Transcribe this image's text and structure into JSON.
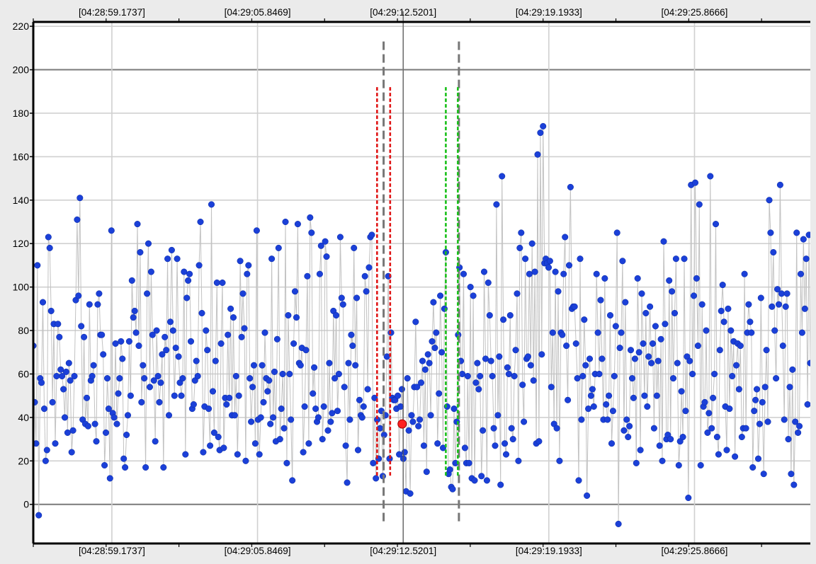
{
  "colors": {
    "background": "#ebebeb",
    "plot_background": "#ffffff",
    "axis": "#000000",
    "minor_grid": "#d0d0d0",
    "major_grid": "#7a7a7a",
    "point": "#1b40d8",
    "line": "#c2c2c2",
    "highlight": "#ff2020",
    "marker_gray": "#777777",
    "marker_red": "#e01515",
    "marker_green": "#18c018",
    "cursor": "#555555"
  },
  "chart_data": {
    "type": "scatter",
    "title": "",
    "xlabel": "",
    "ylabel": "",
    "x_tick_labels": [
      "[04:28:59.1737]",
      "[04:29:05.8469]",
      "[04:29:12.5201]",
      "[04:29:19.1933]",
      "[04:29:25.8666]"
    ],
    "y_ticks": [
      0,
      20,
      40,
      60,
      80,
      100,
      120,
      140,
      160,
      180,
      200,
      220
    ],
    "major_y_lines": [
      0,
      200
    ],
    "ylim": [
      -18,
      222
    ],
    "x_range_seconds_from_first_tick": [
      -3.6,
      32.0
    ],
    "tick_seconds_from_first_tick": [
      0,
      6.6732,
      13.3464,
      20.0196,
      26.6929
    ],
    "grid": true,
    "cursor_x": 13.3464,
    "markers": [
      {
        "kind": "gray-dashed",
        "x": 12.45,
        "y_range": [
          -9,
          213
        ]
      },
      {
        "kind": "gray-dashed",
        "x": 15.9,
        "y_range": [
          -9,
          213
        ]
      },
      {
        "kind": "red-dotted",
        "x": 12.15,
        "y_range": [
          13,
          192
        ]
      },
      {
        "kind": "red-dotted",
        "x": 12.75,
        "y_range": [
          13,
          192
        ]
      },
      {
        "kind": "green-dotted",
        "x": 15.3,
        "y_range": [
          13,
          192
        ]
      },
      {
        "kind": "green-dotted",
        "x": 15.85,
        "y_range": [
          13,
          192
        ]
      }
    ],
    "highlight_point": {
      "x": 13.3,
      "y": 37
    },
    "series": [
      {
        "values": [
          73,
          47,
          28,
          110,
          -5,
          58,
          56,
          93,
          44,
          20,
          25,
          123,
          118,
          89,
          47,
          83,
          28,
          59,
          83,
          77,
          62,
          59,
          53,
          40,
          61,
          33,
          65,
          57,
          24,
          34,
          59,
          94,
          131,
          96,
          141,
          82,
          39,
          77,
          37,
          49,
          36,
          92,
          57,
          59,
          64,
          37,
          29,
          92,
          97,
          78,
          78,
          69,
          18,
          33,
          58,
          44,
          12,
          126,
          42,
          40,
          74,
          37,
          51,
          58,
          75,
          67,
          21,
          17,
          32,
          41,
          75,
          50,
          103,
          86,
          89,
          79,
          129,
          73,
          116,
          47,
          64,
          58,
          17,
          97,
          120,
          54,
          107,
          78,
          57,
          29,
          80,
          59,
          47,
          56,
          69,
          17,
          77,
          71,
          113,
          41,
          84,
          117,
          80,
          50,
          72,
          113,
          68,
          56,
          50,
          58,
          107,
          23,
          95,
          103,
          106,
          75,
          44,
          46,
          57,
          66,
          59,
          110,
          130,
          88,
          24,
          45,
          80,
          71,
          44,
          27,
          138,
          52,
          33,
          66,
          102,
          31,
          25,
          74,
          102,
          26,
          49,
          46,
          78,
          49,
          90,
          41,
          86,
          41,
          59,
          23,
          50,
          112,
          77,
          97,
          81,
          20,
          106,
          110,
          58,
          38,
          54,
          64,
          28,
          126,
          39,
          23,
          40,
          64,
          47,
          79,
          58,
          52,
          57,
          37,
          113,
          40,
          61,
          29,
          76,
          118,
          30,
          44,
          60,
          35,
          130,
          19,
          87,
          60,
          39,
          11,
          74,
          98,
          86,
          129,
          65,
          64,
          72,
          24,
          45,
          71,
          105,
          28,
          132,
          125,
          51,
          63,
          44,
          38,
          40,
          106,
          119,
          30,
          45,
          121,
          114,
          34,
          65,
          38,
          42,
          89,
          58,
          87,
          43,
          60,
          123,
          95,
          92,
          54,
          27,
          10,
          65,
          39,
          78,
          73,
          118,
          64,
          95,
          25,
          48,
          41,
          40,
          45,
          105,
          98,
          53,
          109,
          123,
          124,
          19,
          49,
          12,
          39,
          21,
          35,
          43,
          13,
          32,
          41,
          68,
          105,
          21,
          79,
          49,
          48,
          48,
          44,
          50,
          23,
          45,
          53,
          21,
          24,
          6,
          58,
          34,
          5,
          41,
          38,
          54,
          84,
          54,
          36,
          39,
          56,
          66,
          27,
          62,
          15,
          69,
          65,
          41,
          75,
          93,
          72,
          79,
          28,
          51,
          96,
          70,
          26,
          90,
          116,
          45,
          14,
          16,
          8,
          7,
          44,
          19,
          38,
          78,
          109,
          66,
          60,
          106,
          26,
          19,
          59,
          19,
          100,
          12,
          96,
          11,
          56,
          65,
          53,
          59,
          13,
          34,
          107,
          67,
          11,
          102,
          87,
          66,
          59,
          35,
          27,
          138,
          41,
          68,
          9,
          151,
          85,
          28,
          23,
          63,
          60,
          87,
          35,
          30,
          59,
          71,
          97,
          20,
          118,
          125,
          55,
          38,
          113,
          67,
          68,
          106,
          64,
          120,
          57,
          107,
          28,
          161,
          29,
          171,
          69,
          174,
          111,
          113,
          111,
          109,
          112,
          54,
          79,
          37,
          107,
          35,
          98,
          20,
          79,
          78,
          106,
          123,
          73,
          48,
          110,
          146,
          90,
          91,
          91,
          74,
          58,
          11,
          113,
          39,
          59,
          85,
          64,
          4,
          44,
          67,
          50,
          53,
          45,
          60,
          106,
          79,
          60,
          94,
          67,
          39,
          104,
          46,
          39,
          50,
          87,
          28,
          43,
          59,
          82,
          125,
          -9,
          72,
          79,
          112,
          34,
          93,
          39,
          31,
          36,
          71,
          58,
          49,
          67,
          19,
          104,
          70,
          25,
          97,
          74,
          50,
          88,
          45,
          68,
          91,
          65,
          74,
          35,
          82,
          50,
          66,
          27,
          76,
          20,
          121,
          83,
          30,
          32,
          103,
          30,
          98,
          58,
          88,
          113,
          65,
          18,
          29,
          52,
          31,
          113,
          43,
          68,
          3,
          66,
          147,
          60,
          96,
          148,
          104,
          73,
          138,
          18,
          92,
          45,
          47,
          80,
          33,
          42,
          151,
          35,
          49,
          60,
          129,
          31,
          23,
          71,
          89,
          101,
          84,
          45,
          25,
          90,
          44,
          80,
          59,
          75,
          22,
          64,
          74,
          53,
          73,
          31,
          35,
          106,
          35,
          79,
          92,
          84,
          79,
          17,
          43,
          48,
          53,
          21,
          37,
          95,
          47,
          14,
          54,
          71,
          38,
          140,
          125,
          91,
          116,
          80,
          58,
          99,
          92,
          147,
          97,
          73,
          39,
          91,
          97,
          30,
          54,
          14,
          62,
          9,
          38,
          125,
          33,
          36,
          106,
          79,
          122,
          90,
          113,
          46,
          124,
          65
        ]
      }
    ]
  }
}
